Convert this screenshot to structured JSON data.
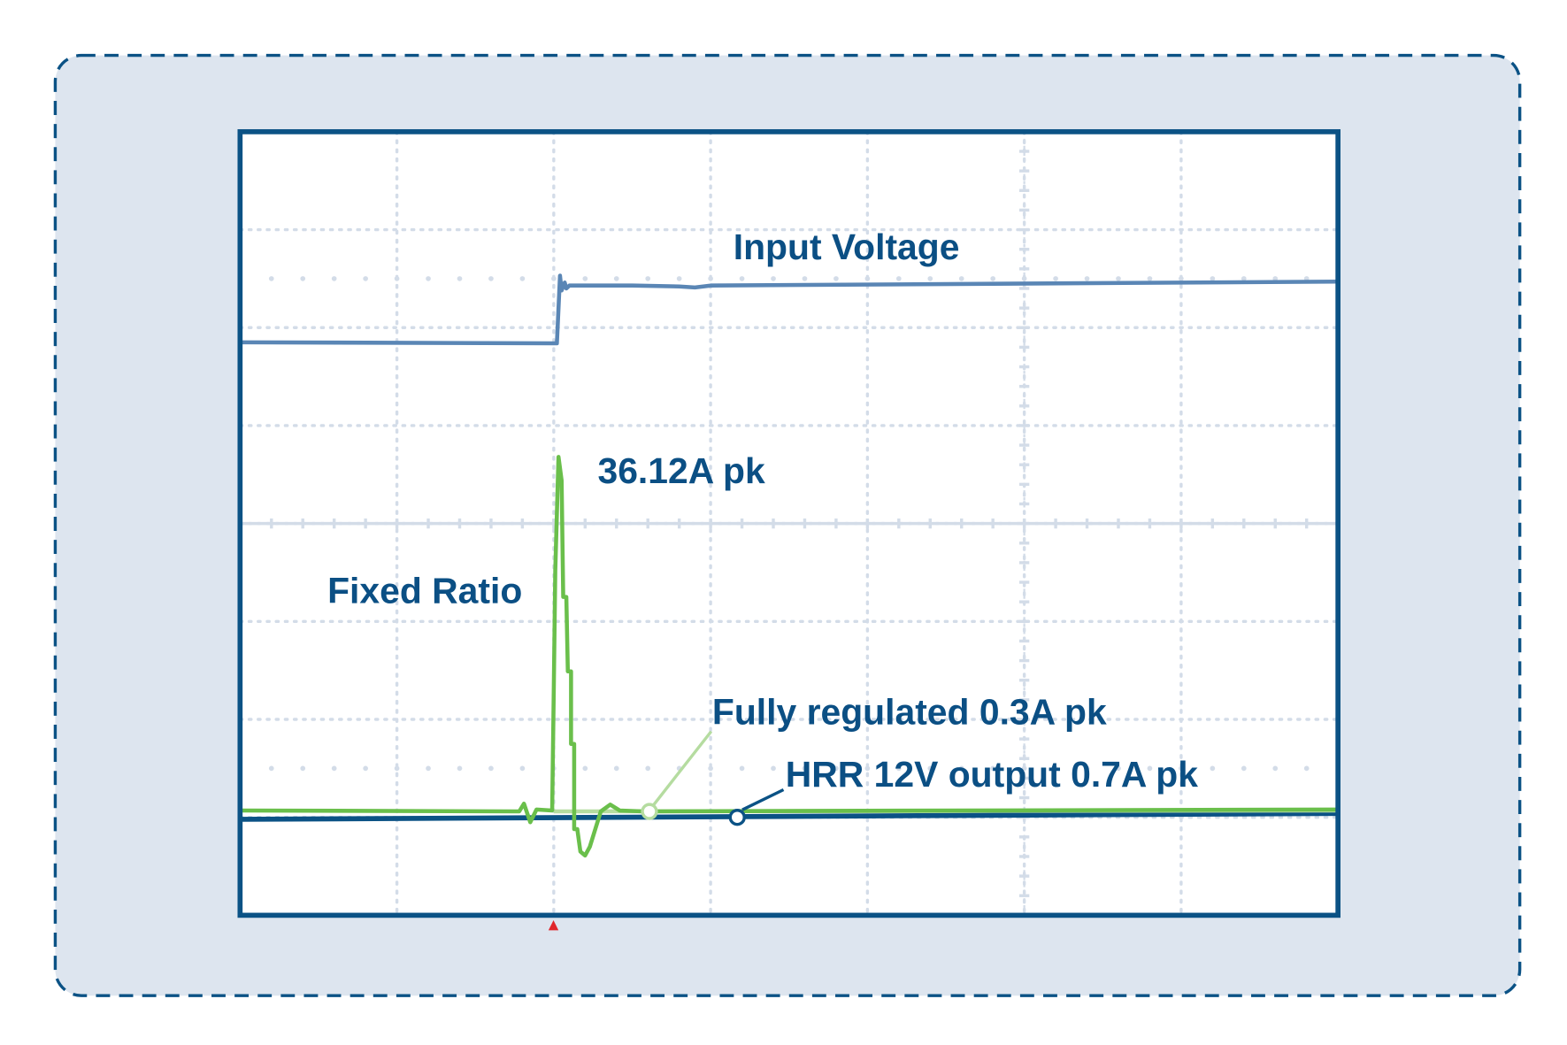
{
  "chart_data": {
    "type": "line",
    "title": "",
    "xlabel": "",
    "ylabel": "",
    "xlim": [
      0,
      7
    ],
    "ylim": [
      0,
      8
    ],
    "grid": true,
    "annotations": {
      "input_voltage": "Input Voltage",
      "peak": "36.12A pk",
      "fixed_ratio": "Fixed Ratio",
      "fully_regulated": "Fully regulated 0.3A pk",
      "hrr": "HRR 12V output 0.7A pk"
    },
    "series": [
      {
        "key": "input_voltage",
        "color": "#5a86b5",
        "points": [
          [
            0,
            5.85
          ],
          [
            2.0,
            5.84
          ],
          [
            2.02,
            5.84
          ],
          [
            2.04,
            6.53
          ],
          [
            2.05,
            6.38
          ],
          [
            2.07,
            6.46
          ],
          [
            2.08,
            6.4
          ],
          [
            2.1,
            6.43
          ],
          [
            2.5,
            6.43
          ],
          [
            2.8,
            6.42
          ],
          [
            2.9,
            6.41
          ],
          [
            3.0,
            6.43
          ],
          [
            7,
            6.47
          ]
        ]
      },
      {
        "key": "fixed_ratio",
        "color": "#6abf4b",
        "points": [
          [
            0.01,
            1.07
          ],
          [
            1.78,
            1.06
          ],
          [
            1.81,
            1.14
          ],
          [
            1.85,
            0.95
          ],
          [
            1.89,
            1.08
          ],
          [
            1.99,
            1.07
          ],
          [
            2.0,
            2.3
          ],
          [
            2.01,
            3.52
          ],
          [
            2.03,
            4.68
          ],
          [
            2.05,
            4.44
          ],
          [
            2.06,
            3.25
          ],
          [
            2.08,
            3.25
          ],
          [
            2.09,
            2.49
          ],
          [
            2.11,
            2.49
          ],
          [
            2.11,
            1.75
          ],
          [
            2.13,
            1.75
          ],
          [
            2.13,
            0.88
          ],
          [
            2.15,
            0.88
          ],
          [
            2.17,
            0.65
          ],
          [
            2.2,
            0.61
          ],
          [
            2.23,
            0.7
          ],
          [
            2.3,
            1.06
          ],
          [
            2.36,
            1.13
          ],
          [
            2.42,
            1.07
          ],
          [
            2.57,
            1.06
          ],
          [
            6.99,
            1.08
          ]
        ]
      },
      {
        "key": "fully_regulated",
        "color": "#b5dca0",
        "points": [
          [
            2.0,
            1.06
          ],
          [
            7,
            1.07
          ]
        ]
      },
      {
        "key": "hrr",
        "color": "#0b5285",
        "points": [
          [
            0,
            0.98
          ],
          [
            7,
            1.04
          ]
        ]
      }
    ],
    "markers": [
      {
        "series": "fully_regulated",
        "x": 2.61,
        "y": 1.06,
        "color": "#b5dca0"
      },
      {
        "series": "hrr",
        "x": 3.17,
        "y": 1.0,
        "color": "#0b5285"
      }
    ],
    "trigger_x": 2.0,
    "colors": {
      "frame": "#0b5285",
      "panel": "#dde5ef",
      "grid": "#d3dce8",
      "text": "#0b4f84",
      "trigger": "#e0262b"
    }
  }
}
